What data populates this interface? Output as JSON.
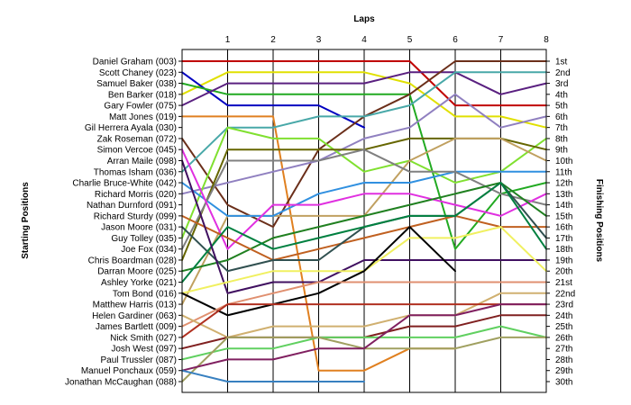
{
  "chart_data": {
    "type": "line",
    "title": "",
    "xlabel": "Laps",
    "ylabel_left": "Starting Positions",
    "ylabel_right": "Finishing Positions",
    "x": [
      0,
      1,
      2,
      3,
      4,
      5,
      6,
      7,
      8
    ],
    "x_tick_labels": [
      "1",
      "2",
      "3",
      "4",
      "5",
      "6",
      "7",
      "8"
    ],
    "xlim": [
      0,
      8
    ],
    "ylim": [
      1,
      30
    ],
    "y_inverted": true,
    "grid": "vertical",
    "left_labels": [
      "Daniel Graham (003)",
      "Scott Chaney (023)",
      "Samuel Baker (038)",
      "Ben Barker (018)",
      "Gary Fowler (075)",
      "Matt Jones (019)",
      "Gil Herrera Ayala (030)",
      "Zak Roseman (072)",
      "Simon Vercoe (045)",
      "Arran Maile (098)",
      "Thomas Isham (036)",
      "Charlie Bruce-White (042)",
      "Richard Morris (020)",
      "Nathan Durnford (091)",
      "Richard Sturdy (099)",
      "Jason Moore (031)",
      "Guy Tolley (035)",
      "Joe Fox (034)",
      "Chris Boardman (028)",
      "Darran Moore (025)",
      "Ashley Yorke (021)",
      "Tom Bond (016)",
      "Matthew Harris (013)",
      "Helen Gardiner (063)",
      "James Bartlett (009)",
      "Nick Smith (027)",
      "Josh West (097)",
      "Paul Trussler (087)",
      "Manuel Ponchaux (059)",
      "Jonathan McCaughan (088)"
    ],
    "right_labels": [
      "1st",
      "2nd",
      "3rd",
      "4th",
      "5th",
      "6th",
      "7th",
      "8th",
      "9th",
      "10th",
      "11th",
      "12th",
      "13th",
      "14th",
      "15th",
      "16th",
      "17th",
      "18th",
      "19th",
      "20th",
      "21st",
      "22nd",
      "23rd",
      "24th",
      "25th",
      "26th",
      "27th",
      "28th",
      "29th",
      "30th"
    ],
    "series": [
      {
        "color": "#c00000",
        "values": [
          1,
          1,
          1,
          1,
          1,
          1,
          5,
          5,
          5
        ]
      },
      {
        "color": "#e0e000",
        "values": [
          4,
          2,
          2,
          2,
          2,
          3,
          6,
          6,
          7
        ]
      },
      {
        "color": "#0000c0",
        "values": [
          2,
          5,
          5,
          5,
          7,
          null,
          null,
          null,
          null
        ]
      },
      {
        "color": "#22aa22",
        "values": [
          3,
          4,
          4,
          4,
          4,
          4,
          18,
          13,
          12
        ]
      },
      {
        "color": "#5a2080",
        "values": [
          5,
          3,
          3,
          3,
          3,
          2,
          2,
          4,
          3
        ]
      },
      {
        "color": "#e08020",
        "values": [
          6,
          6,
          6,
          29,
          29,
          27,
          27,
          null,
          null
        ]
      },
      {
        "color": "#6b2f1a",
        "values": [
          8,
          14,
          16,
          9,
          6,
          4,
          1,
          1,
          1
        ]
      },
      {
        "color": "#48a8a8",
        "values": [
          11,
          7,
          7,
          6,
          6,
          5,
          2,
          2,
          2
        ]
      },
      {
        "color": "#9080c0",
        "values": [
          13,
          12,
          11,
          10,
          8,
          7,
          4,
          7,
          6
        ]
      },
      {
        "color": "#80e030",
        "values": [
          17,
          7,
          8,
          8,
          11,
          10,
          12,
          11,
          8
        ]
      },
      {
        "color": "#666600",
        "values": [
          19,
          9,
          9,
          9,
          9,
          8,
          8,
          8,
          9
        ]
      },
      {
        "color": "#c0a060",
        "values": [
          23,
          15,
          15,
          15,
          15,
          10,
          8,
          8,
          10
        ]
      },
      {
        "color": "#3090e0",
        "values": [
          12,
          15,
          15,
          13,
          12,
          12,
          11,
          11,
          11
        ]
      },
      {
        "color": "#808080",
        "values": [
          18,
          10,
          10,
          10,
          9,
          11,
          11,
          13,
          14
        ]
      },
      {
        "color": "#e030e0",
        "values": [
          9,
          18,
          14,
          14,
          13,
          13,
          14,
          15,
          13
        ]
      },
      {
        "color": "#208020",
        "values": [
          20,
          19,
          17,
          16,
          15,
          14,
          13,
          12,
          15
        ]
      },
      {
        "color": "#c06020",
        "values": [
          15,
          17,
          19,
          18,
          17,
          16,
          15,
          16,
          16
        ]
      },
      {
        "color": "#305050",
        "values": [
          16,
          20,
          19,
          19,
          16,
          15,
          15,
          12,
          17
        ]
      },
      {
        "color": "#008040",
        "values": [
          21,
          16,
          18,
          17,
          16,
          15,
          15,
          12,
          18
        ]
      },
      {
        "color": "#401060",
        "values": [
          10,
          22,
          21,
          21,
          19,
          19,
          19,
          19,
          19
        ]
      },
      {
        "color": "#f0f060",
        "values": [
          22,
          21,
          20,
          20,
          20,
          17,
          17,
          16,
          20
        ]
      },
      {
        "color": "#000000",
        "values": [
          22,
          24,
          23,
          22,
          20,
          16,
          20,
          null,
          null
        ]
      },
      {
        "color": "#e09070",
        "values": [
          25,
          23,
          22,
          21,
          21,
          21,
          21,
          21,
          21
        ]
      },
      {
        "color": "#d0b070",
        "values": [
          24,
          26,
          25,
          25,
          25,
          24,
          24,
          22,
          22
        ]
      },
      {
        "color": "#b03020",
        "values": [
          26,
          23,
          23,
          23,
          23,
          23,
          23,
          23,
          23
        ]
      },
      {
        "color": "#802020",
        "values": [
          27,
          26,
          26,
          26,
          26,
          25,
          25,
          24,
          24
        ]
      },
      {
        "color": "#60d060",
        "values": [
          28,
          27,
          27,
          26,
          26,
          26,
          26,
          25,
          26
        ]
      },
      {
        "color": "#a0a060",
        "values": [
          30,
          26,
          26,
          26,
          27,
          27,
          27,
          26,
          26
        ]
      },
      {
        "color": "#802060",
        "values": [
          29,
          28,
          28,
          27,
          27,
          24,
          24,
          23,
          23
        ]
      },
      {
        "color": "#3880c0",
        "values": [
          29,
          30,
          30,
          30,
          30,
          null,
          null,
          null,
          null
        ]
      }
    ]
  }
}
